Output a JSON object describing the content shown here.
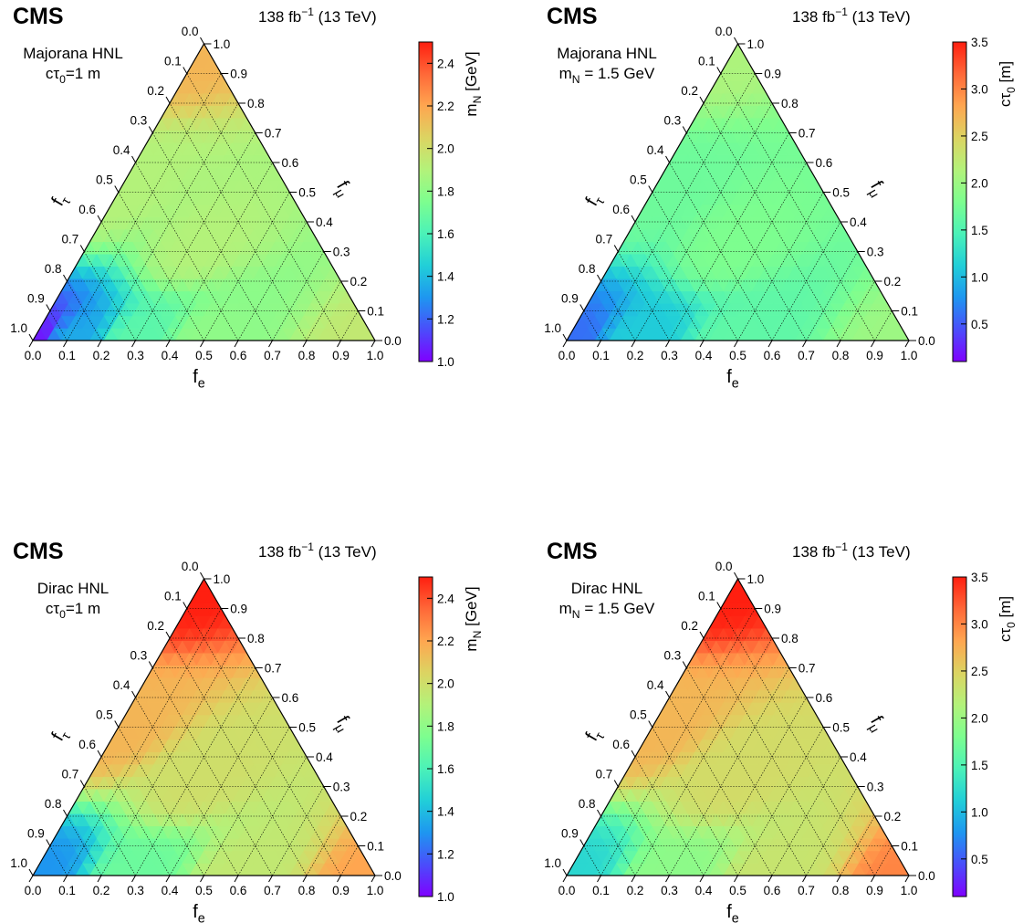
{
  "colors": {
    "palette": [
      "#7f00ff",
      "#4a4dfb",
      "#1e96f0",
      "#21cfd8",
      "#4bf2b8",
      "#7dfe8f",
      "#b3f27a",
      "#dcd462",
      "#ffa650",
      "#ff6838",
      "#ff1f10"
    ]
  },
  "chart_data": [
    {
      "type": "heatmap",
      "subtype": "ternary",
      "experiment": "CMS",
      "lumi": "138 fb",
      "lumi_exp": "−1",
      "energy": "(13 TeV)",
      "label_line1": "Majorana HNL",
      "label_line2": {
        "a": "cτ",
        "sub": "0",
        "b": "=1 m"
      },
      "axes": {
        "bottom": {
          "main": "f",
          "sub": "e"
        },
        "left": {
          "main": "f",
          "sub": "τ"
        },
        "right": {
          "main": "f",
          "sub": "μ"
        }
      },
      "ticks": [
        "0.0",
        "0.1",
        "0.2",
        "0.3",
        "0.4",
        "0.5",
        "0.6",
        "0.7",
        "0.8",
        "0.9",
        "1.0"
      ],
      "colorbar": {
        "title_main": "m",
        "title_sub": "N",
        "title_rest": " [GeV]",
        "range": [
          1.0,
          2.5
        ],
        "ticks": [
          "1.0",
          "1.2",
          "1.4",
          "1.6",
          "1.8",
          "2.0",
          "2.2",
          "2.4"
        ]
      },
      "corner_values": {
        "f_e=1": 1.95,
        "f_mu=1": 2.15,
        "f_tau=1": 1.05
      },
      "grid_values": [
        {
          "f_e": 0.0,
          "f_mu": 0.0,
          "f_tau": 1.0,
          "value": 1.05
        },
        {
          "f_e": 0.1,
          "f_mu": 0.0,
          "f_tau": 0.9,
          "value": 1.35
        },
        {
          "f_e": 0.3,
          "f_mu": 0.0,
          "f_tau": 0.7,
          "value": 1.65
        },
        {
          "f_e": 0.5,
          "f_mu": 0.0,
          "f_tau": 0.5,
          "value": 1.8
        },
        {
          "f_e": 1.0,
          "f_mu": 0.0,
          "f_tau": 0.0,
          "value": 1.95
        },
        {
          "f_e": 0.0,
          "f_mu": 0.5,
          "f_tau": 0.5,
          "value": 1.9
        },
        {
          "f_e": 0.0,
          "f_mu": 1.0,
          "f_tau": 0.0,
          "value": 2.15
        },
        {
          "f_e": 0.33,
          "f_mu": 0.33,
          "f_tau": 0.34,
          "value": 1.9
        }
      ]
    },
    {
      "type": "heatmap",
      "subtype": "ternary",
      "experiment": "CMS",
      "lumi": "138 fb",
      "lumi_exp": "−1",
      "energy": "(13 TeV)",
      "label_line1": "Majorana HNL",
      "label_line2": {
        "a": "m",
        "sub": "N",
        "b": " = 1.5 GeV"
      },
      "axes": {
        "bottom": {
          "main": "f",
          "sub": "e"
        },
        "left": {
          "main": "f",
          "sub": "τ"
        },
        "right": {
          "main": "f",
          "sub": "μ"
        }
      },
      "ticks": [
        "0.0",
        "0.1",
        "0.2",
        "0.3",
        "0.4",
        "0.5",
        "0.6",
        "0.7",
        "0.8",
        "0.9",
        "1.0"
      ],
      "colorbar": {
        "title_main": "cτ",
        "title_sub": "0",
        "title_rest": " [m]",
        "range": [
          0.1,
          3.5
        ],
        "ticks": [
          "0.5",
          "1.0",
          "1.5",
          "2.0",
          "2.5",
          "3.0",
          "3.5"
        ]
      },
      "corner_values": {
        "f_e=1": 2.0,
        "f_mu=1": 2.1,
        "f_tau=1": 0.6
      },
      "grid_values": [
        {
          "f_e": 0.0,
          "f_mu": 0.0,
          "f_tau": 1.0,
          "value": 0.6
        },
        {
          "f_e": 0.2,
          "f_mu": 0.0,
          "f_tau": 0.8,
          "value": 1.1
        },
        {
          "f_e": 0.5,
          "f_mu": 0.0,
          "f_tau": 0.5,
          "value": 1.6
        },
        {
          "f_e": 1.0,
          "f_mu": 0.0,
          "f_tau": 0.0,
          "value": 2.0
        },
        {
          "f_e": 0.0,
          "f_mu": 0.5,
          "f_tau": 0.5,
          "value": 1.7
        },
        {
          "f_e": 0.0,
          "f_mu": 1.0,
          "f_tau": 0.0,
          "value": 2.1
        },
        {
          "f_e": 0.33,
          "f_mu": 0.33,
          "f_tau": 0.34,
          "value": 1.8
        }
      ]
    },
    {
      "type": "heatmap",
      "subtype": "ternary",
      "experiment": "CMS",
      "lumi": "138 fb",
      "lumi_exp": "−1",
      "energy": "(13 TeV)",
      "label_line1": "Dirac HNL",
      "label_line2": {
        "a": "cτ",
        "sub": "0",
        "b": "=1 m"
      },
      "axes": {
        "bottom": {
          "main": "f",
          "sub": "e"
        },
        "left": {
          "main": "f",
          "sub": "τ"
        },
        "right": {
          "main": "f",
          "sub": "μ"
        }
      },
      "ticks": [
        "0.0",
        "0.1",
        "0.2",
        "0.3",
        "0.4",
        "0.5",
        "0.6",
        "0.7",
        "0.8",
        "0.9",
        "1.0"
      ],
      "colorbar": {
        "title_main": "m",
        "title_sub": "N",
        "title_rest": " [GeV]",
        "range": [
          1.0,
          2.5
        ],
        "ticks": [
          "1.0",
          "1.2",
          "1.4",
          "1.6",
          "1.8",
          "2.0",
          "2.2",
          "2.4"
        ]
      },
      "corner_values": {
        "f_e=1": 2.2,
        "f_mu=1": 2.5,
        "f_tau=1": 1.3
      },
      "grid_values": [
        {
          "f_e": 0.0,
          "f_mu": 0.0,
          "f_tau": 1.0,
          "value": 1.3
        },
        {
          "f_e": 0.3,
          "f_mu": 0.0,
          "f_tau": 0.7,
          "value": 1.7
        },
        {
          "f_e": 0.6,
          "f_mu": 0.0,
          "f_tau": 0.4,
          "value": 1.95
        },
        {
          "f_e": 1.0,
          "f_mu": 0.0,
          "f_tau": 0.0,
          "value": 2.2
        },
        {
          "f_e": 0.0,
          "f_mu": 0.5,
          "f_tau": 0.5,
          "value": 2.15
        },
        {
          "f_e": 0.0,
          "f_mu": 1.0,
          "f_tau": 0.0,
          "value": 2.5
        },
        {
          "f_e": 0.33,
          "f_mu": 0.33,
          "f_tau": 0.34,
          "value": 2.0
        }
      ]
    },
    {
      "type": "heatmap",
      "subtype": "ternary",
      "experiment": "CMS",
      "lumi": "138 fb",
      "lumi_exp": "−1",
      "energy": "(13 TeV)",
      "label_line1": "Dirac HNL",
      "label_line2": {
        "a": "m",
        "sub": "N",
        "b": " = 1.5 GeV"
      },
      "axes": {
        "bottom": {
          "main": "f",
          "sub": "e"
        },
        "left": {
          "main": "f",
          "sub": "τ"
        },
        "right": {
          "main": "f",
          "sub": "μ"
        }
      },
      "ticks": [
        "0.0",
        "0.1",
        "0.2",
        "0.3",
        "0.4",
        "0.5",
        "0.6",
        "0.7",
        "0.8",
        "0.9",
        "1.0"
      ],
      "colorbar": {
        "title_main": "cτ",
        "title_sub": "0",
        "title_rest": " [m]",
        "range": [
          0.1,
          3.5
        ],
        "ticks": [
          "0.5",
          "1.0",
          "1.5",
          "2.0",
          "2.5",
          "3.0",
          "3.5"
        ]
      },
      "corner_values": {
        "f_e=1": 3.0,
        "f_mu=1": 3.5,
        "f_tau=1": 1.2
      },
      "grid_values": [
        {
          "f_e": 0.0,
          "f_mu": 0.0,
          "f_tau": 1.0,
          "value": 1.2
        },
        {
          "f_e": 0.3,
          "f_mu": 0.0,
          "f_tau": 0.7,
          "value": 1.9
        },
        {
          "f_e": 0.6,
          "f_mu": 0.0,
          "f_tau": 0.4,
          "value": 2.3
        },
        {
          "f_e": 1.0,
          "f_mu": 0.0,
          "f_tau": 0.0,
          "value": 3.0
        },
        {
          "f_e": 0.0,
          "f_mu": 0.5,
          "f_tau": 0.5,
          "value": 2.7
        },
        {
          "f_e": 0.0,
          "f_mu": 1.0,
          "f_tau": 0.0,
          "value": 3.5
        },
        {
          "f_e": 0.33,
          "f_mu": 0.33,
          "f_tau": 0.34,
          "value": 2.4
        }
      ]
    }
  ]
}
